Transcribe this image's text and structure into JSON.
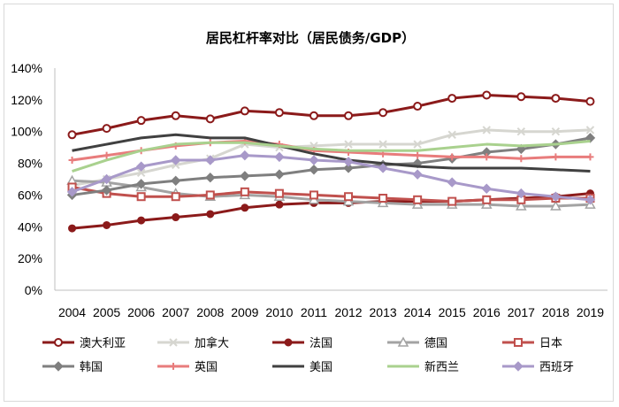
{
  "chart_data": {
    "type": "line",
    "title": "居民杠杆率对比（居民债务/GDP）",
    "xlabel": "",
    "ylabel": "",
    "categories": [
      "2004",
      "2005",
      "2006",
      "2007",
      "2008",
      "2009",
      "2010",
      "2011",
      "2012",
      "2013",
      "2014",
      "2015",
      "2016",
      "2017",
      "2018",
      "2019"
    ],
    "yticks": [
      "0%",
      "20%",
      "40%",
      "60%",
      "80%",
      "100%",
      "120%",
      "140%"
    ],
    "ylim": [
      0,
      140
    ],
    "grid": false,
    "legend_position": "bottom",
    "series": [
      {
        "name": "澳大利亚",
        "color": "#8b1a1a",
        "marker": "circle-open",
        "values": [
          98,
          102,
          107,
          110,
          108,
          113,
          112,
          110,
          110,
          112,
          116,
          121,
          123,
          122,
          121,
          119
        ]
      },
      {
        "name": "加拿大",
        "color": "#d6d6d0",
        "marker": "x",
        "values": [
          66,
          70,
          74,
          79,
          83,
          92,
          90,
          91,
          92,
          92,
          92,
          98,
          101,
          100,
          100,
          101
        ]
      },
      {
        "name": "法国",
        "color": "#8b1a1a",
        "marker": "circle",
        "values": [
          39,
          41,
          44,
          46,
          48,
          52,
          54,
          55,
          55,
          56,
          56,
          56,
          57,
          58,
          59,
          61
        ]
      },
      {
        "name": "德国",
        "color": "#a3a3a3",
        "marker": "triangle-open",
        "values": [
          69,
          68,
          65,
          61,
          59,
          60,
          59,
          57,
          56,
          55,
          54,
          54,
          54,
          53,
          53,
          54
        ]
      },
      {
        "name": "日本",
        "color": "#c0504d",
        "marker": "square-open",
        "values": [
          65,
          61,
          59,
          59,
          60,
          62,
          61,
          60,
          59,
          58,
          57,
          56,
          57,
          57,
          58,
          58
        ]
      },
      {
        "name": "韩国",
        "color": "#7f7f7f",
        "marker": "diamond",
        "values": [
          60,
          63,
          67,
          69,
          71,
          72,
          73,
          76,
          77,
          79,
          80,
          83,
          87,
          89,
          92,
          96
        ]
      },
      {
        "name": "英国",
        "color": "#e87c7c",
        "marker": "plus",
        "values": [
          82,
          85,
          88,
          91,
          93,
          94,
          92,
          88,
          87,
          86,
          85,
          84,
          84,
          83,
          84,
          84
        ]
      },
      {
        "name": "美国",
        "color": "#404040",
        "marker": "none",
        "values": [
          88,
          92,
          96,
          98,
          96,
          96,
          91,
          86,
          82,
          80,
          78,
          77,
          77,
          77,
          76,
          75
        ]
      },
      {
        "name": "新西兰",
        "color": "#a9d18e",
        "marker": "none",
        "values": [
          75,
          82,
          88,
          92,
          93,
          93,
          91,
          89,
          88,
          88,
          88,
          90,
          92,
          91,
          92,
          94
        ]
      },
      {
        "name": "西班牙",
        "color": "#a899c9",
        "marker": "diamond",
        "values": [
          62,
          70,
          78,
          82,
          82,
          85,
          84,
          82,
          81,
          77,
          73,
          68,
          64,
          61,
          59,
          57
        ]
      }
    ]
  }
}
